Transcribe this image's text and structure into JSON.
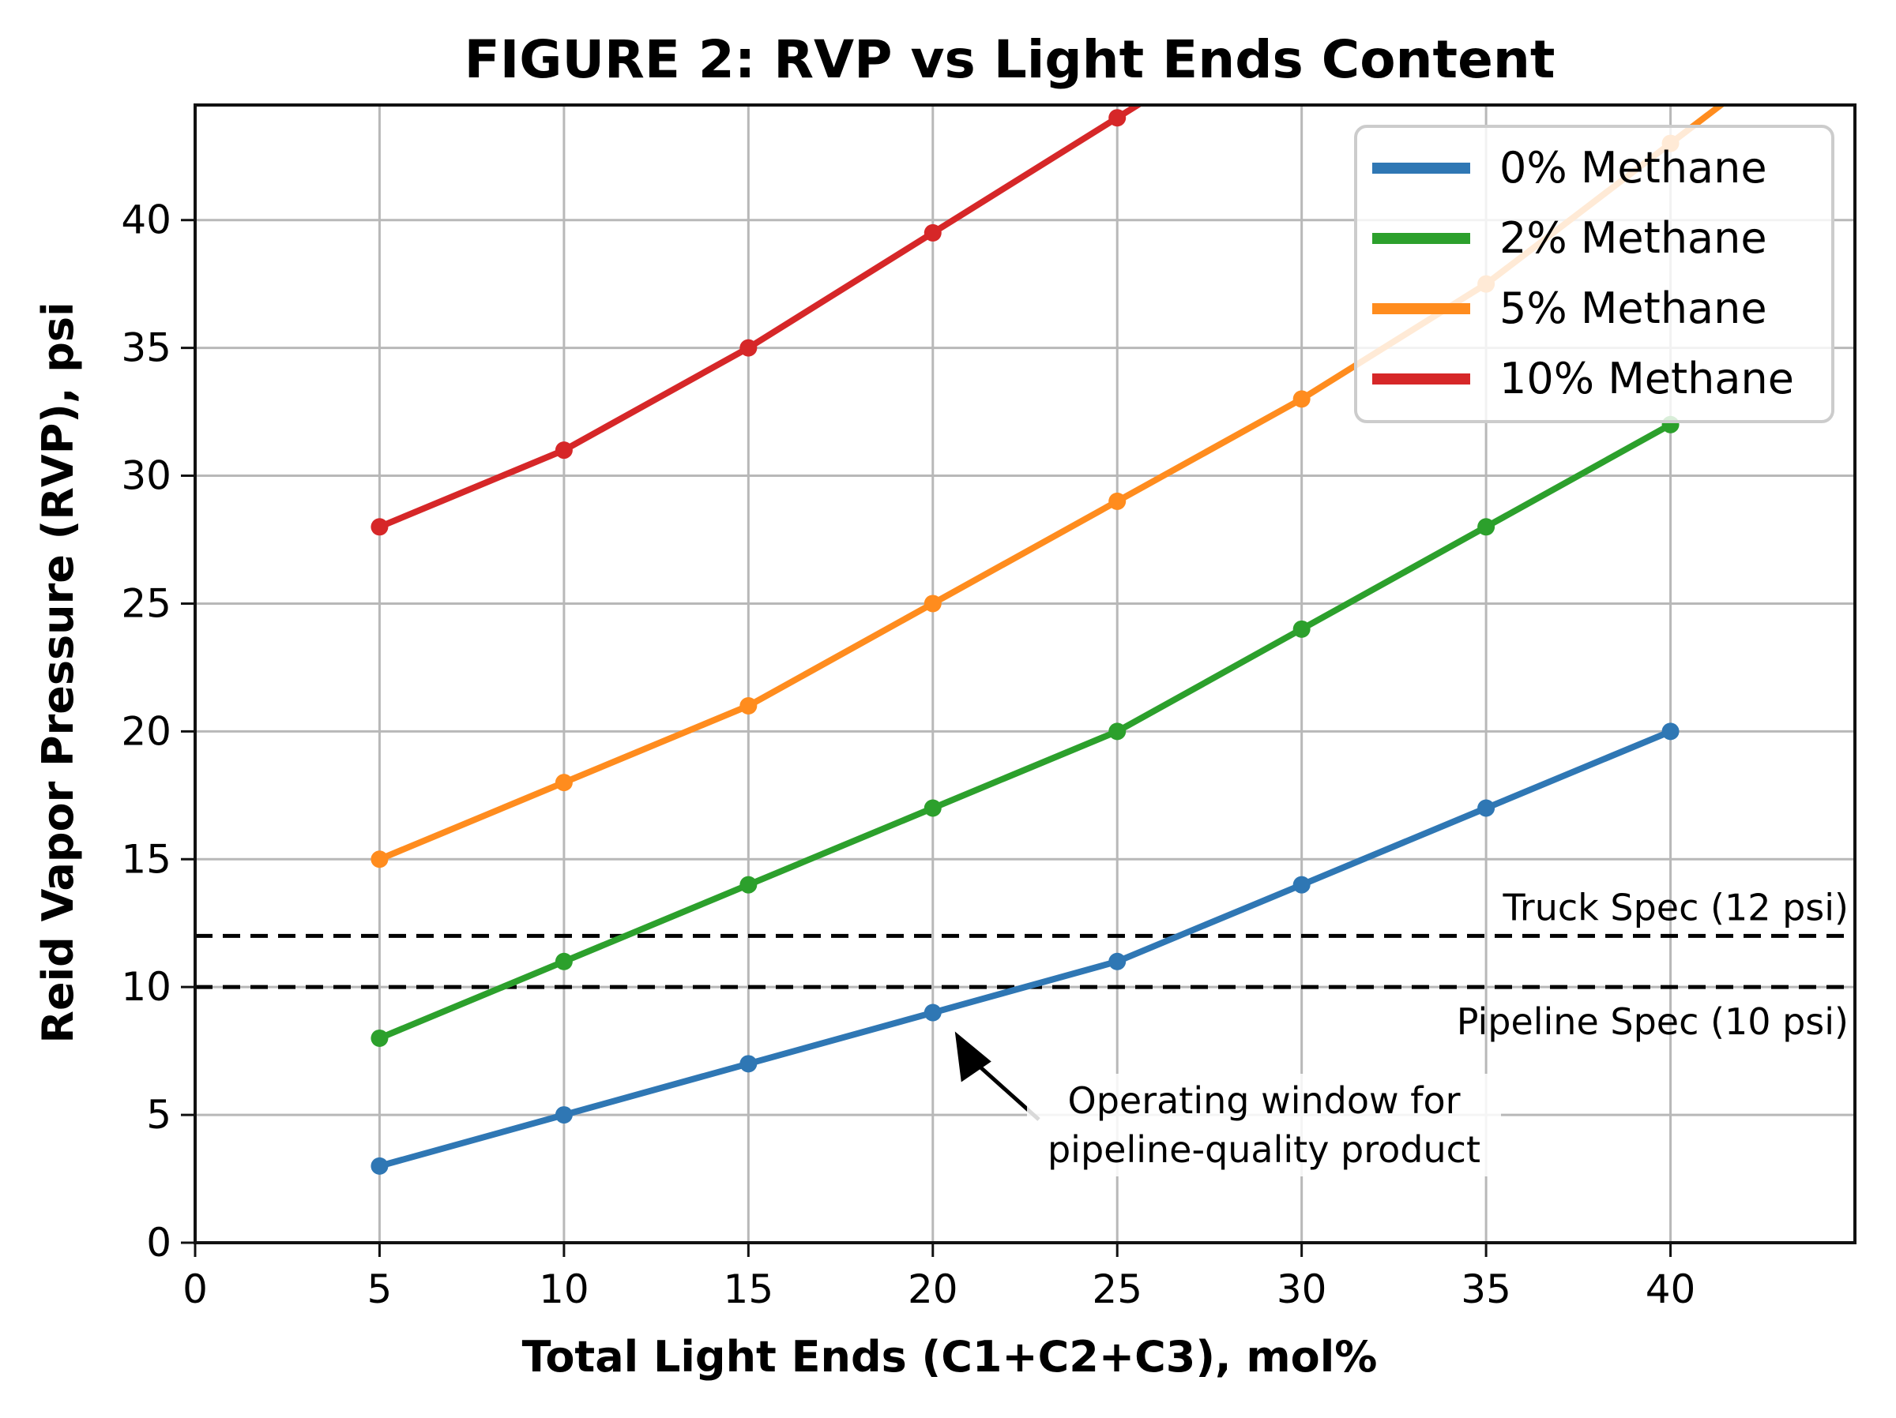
{
  "chart_data": {
    "type": "line",
    "title": "FIGURE 2: RVP vs Light Ends Content",
    "xlabel": "Total Light Ends (C1+C2+C3), mol%",
    "ylabel": "Reid Vapor Pressure (RVP), psi",
    "xlim": [
      0,
      45
    ],
    "ylim": [
      0,
      44.5
    ],
    "xticks": [
      0,
      5,
      10,
      15,
      20,
      25,
      30,
      35,
      40
    ],
    "yticks": [
      0,
      5,
      10,
      15,
      20,
      25,
      30,
      35,
      40
    ],
    "grid": true,
    "legend_position": "upper right",
    "x": [
      5,
      10,
      15,
      20,
      25,
      30,
      35,
      40
    ],
    "series": [
      {
        "name": "0% Methane",
        "color": "#2f77b4",
        "values": [
          3,
          5,
          7,
          9,
          11,
          14,
          17,
          20
        ]
      },
      {
        "name": "2% Methane",
        "color": "#2ca02c",
        "values": [
          8,
          11,
          14,
          17,
          20,
          24,
          28,
          32
        ]
      },
      {
        "name": "5% Methane",
        "color": "#ff8c1e",
        "values": [
          15,
          18,
          21,
          25,
          29,
          33,
          37.5,
          43
        ]
      },
      {
        "name": "10% Methane",
        "color": "#d62728",
        "values": [
          28,
          31,
          35,
          39.5,
          44,
          null,
          null,
          null
        ]
      }
    ],
    "reference_lines": [
      {
        "label": "Truck Spec (12 psi)",
        "y": 12,
        "style": "dashed",
        "color": "#000000"
      },
      {
        "label": "Pipeline Spec (10 psi)",
        "y": 10,
        "style": "dashed",
        "color": "#000000"
      }
    ],
    "annotations": [
      {
        "text_line1": "Operating window for",
        "text_line2": "pipeline-quality product",
        "arrow_to": [
          20,
          9
        ]
      }
    ]
  }
}
